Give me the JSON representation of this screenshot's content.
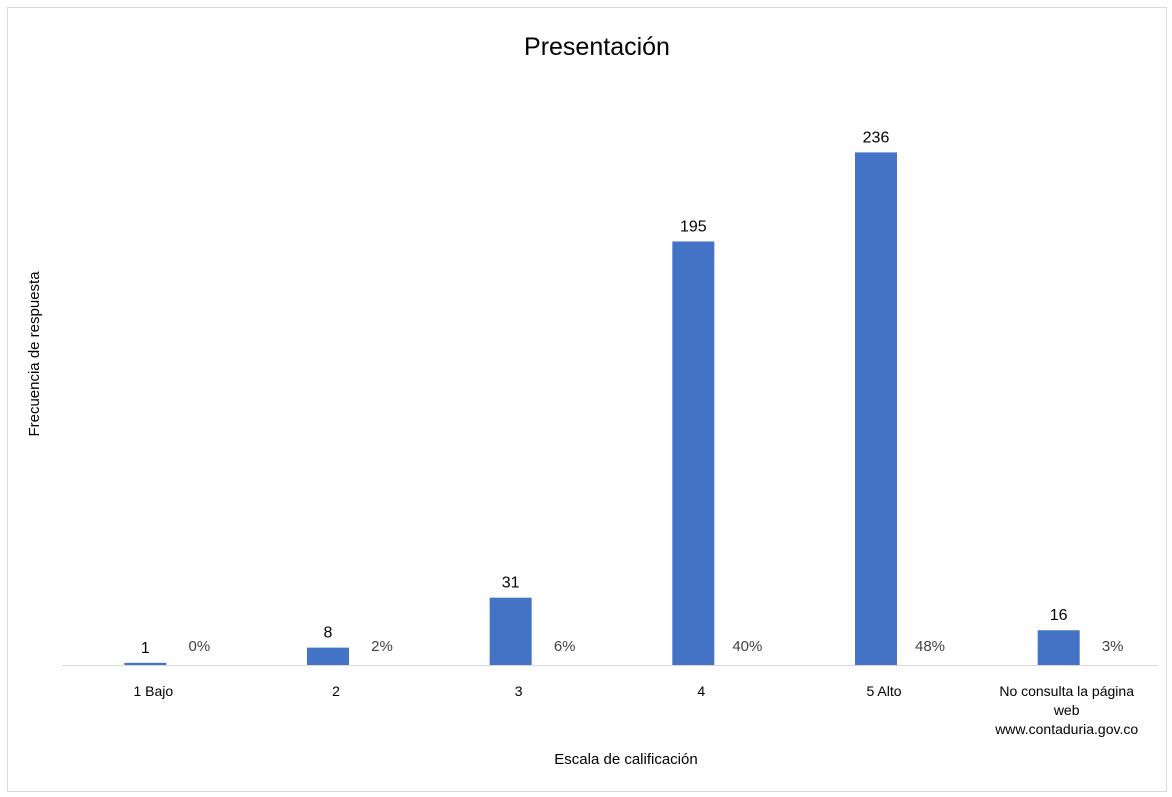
{
  "chart_data": {
    "type": "bar",
    "title": "Presentación",
    "xlabel": "Escala de calificación",
    "ylabel": "Frecuencia de respuesta",
    "categories": [
      [
        "1 Bajo"
      ],
      [
        "2"
      ],
      [
        "3"
      ],
      [
        "4"
      ],
      [
        "5 Alto"
      ],
      [
        "No consulta la página",
        "web",
        "www.contaduria.gov.co"
      ]
    ],
    "series": [
      {
        "values": [
          1,
          8,
          31,
          195,
          236,
          16
        ],
        "percent_labels": [
          "0%",
          "2%",
          "6%",
          "40%",
          "48%",
          "3%"
        ],
        "color": "#4472C4"
      }
    ],
    "ylim": [
      0,
      250
    ],
    "grid": false,
    "legend": "none"
  }
}
